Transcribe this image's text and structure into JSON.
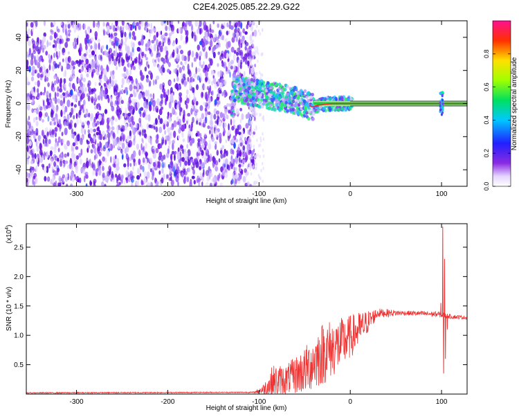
{
  "chart_data": [
    {
      "type": "heatmap",
      "title": "C2E4.2025.085.22.29.G22",
      "xlabel": "Height of straight line (km)",
      "ylabel": "Frequency (Hz)",
      "xlim": [
        -355,
        128
      ],
      "ylim": [
        -50,
        50
      ],
      "x_ticks": [
        -300,
        -200,
        -100,
        0,
        100
      ],
      "x_tick_labels": [
        "-300",
        "-200",
        "-100",
        "0",
        "100"
      ],
      "y_ticks": [
        40,
        20,
        0,
        -20,
        -40
      ],
      "y_tick_labels": [
        "40",
        "20",
        "0",
        "-20",
        "-40"
      ],
      "grid": false,
      "colorbar": {
        "label": "Normalized spectral amplitude",
        "range": [
          0,
          1
        ],
        "ticks": [
          0.0,
          0.2,
          0.4,
          0.6,
          0.8
        ],
        "tick_labels": [
          "0.0",
          "0.2",
          "0.4",
          "0.6",
          "0.8"
        ],
        "colormap": "rainbow (violet to red)"
      },
      "noise_region_x": [
        -355,
        -110
      ],
      "signal_track": [
        {
          "x": -128,
          "y": 9
        },
        {
          "x": -110,
          "y": 7
        },
        {
          "x": -90,
          "y": 5
        },
        {
          "x": -70,
          "y": 3
        },
        {
          "x": -55,
          "y": 1
        },
        {
          "x": -42,
          "y": -2
        },
        {
          "x": -35,
          "y": -1
        },
        {
          "x": -20,
          "y": 0
        },
        {
          "x": 0,
          "y": 0
        },
        {
          "x": 100,
          "y": 0
        },
        {
          "x": 128,
          "y": 0
        }
      ],
      "line_color": "#ff2222",
      "band_color": "#22cc44"
    },
    {
      "type": "line",
      "xlabel": "Height of straight line (km)",
      "ylabel": "SNR (10 * v/v)",
      "multiplier": "(x10",
      "multiplier_exp": "4",
      "xlim": [
        -355,
        128
      ],
      "ylim": [
        0,
        2.9
      ],
      "x_ticks": [
        -300,
        -200,
        -100,
        0,
        100
      ],
      "x_tick_labels": [
        "-300",
        "-200",
        "-100",
        "0",
        "100"
      ],
      "y_ticks": [
        0.5,
        1.0,
        1.5,
        2.0,
        2.5
      ],
      "y_tick_labels": [
        "0.5",
        "1.0",
        "1.5",
        "2.0",
        "2.5"
      ],
      "grid": false,
      "color": "#ee3333",
      "envelope": [
        {
          "x": -355,
          "y": 0.02,
          "noise": 0.01
        },
        {
          "x": -105,
          "y": 0.03,
          "noise": 0.01
        },
        {
          "x": -95,
          "y": 0.08,
          "noise": 0.1
        },
        {
          "x": -85,
          "y": 0.2,
          "noise": 0.3
        },
        {
          "x": -70,
          "y": 0.25,
          "noise": 0.25
        },
        {
          "x": -50,
          "y": 0.4,
          "noise": 0.4
        },
        {
          "x": -30,
          "y": 0.7,
          "noise": 0.55
        },
        {
          "x": -10,
          "y": 0.85,
          "noise": 0.45
        },
        {
          "x": 10,
          "y": 1.1,
          "noise": 0.3
        },
        {
          "x": 30,
          "y": 1.38,
          "noise": 0.08
        },
        {
          "x": 60,
          "y": 1.38,
          "noise": 0.04
        },
        {
          "x": 95,
          "y": 1.36,
          "noise": 0.05
        },
        {
          "x": 110,
          "y": 1.32,
          "noise": 0.04
        },
        {
          "x": 128,
          "y": 1.3,
          "noise": 0.03
        }
      ],
      "spikes": [
        {
          "x": 101,
          "y": 2.85
        },
        {
          "x": 102,
          "y": 0.35
        },
        {
          "x": 103,
          "y": 2.3
        },
        {
          "x": 104,
          "y": 0.6
        },
        {
          "x": 99,
          "y": 1.55
        },
        {
          "x": 106,
          "y": 1.1
        }
      ]
    }
  ]
}
